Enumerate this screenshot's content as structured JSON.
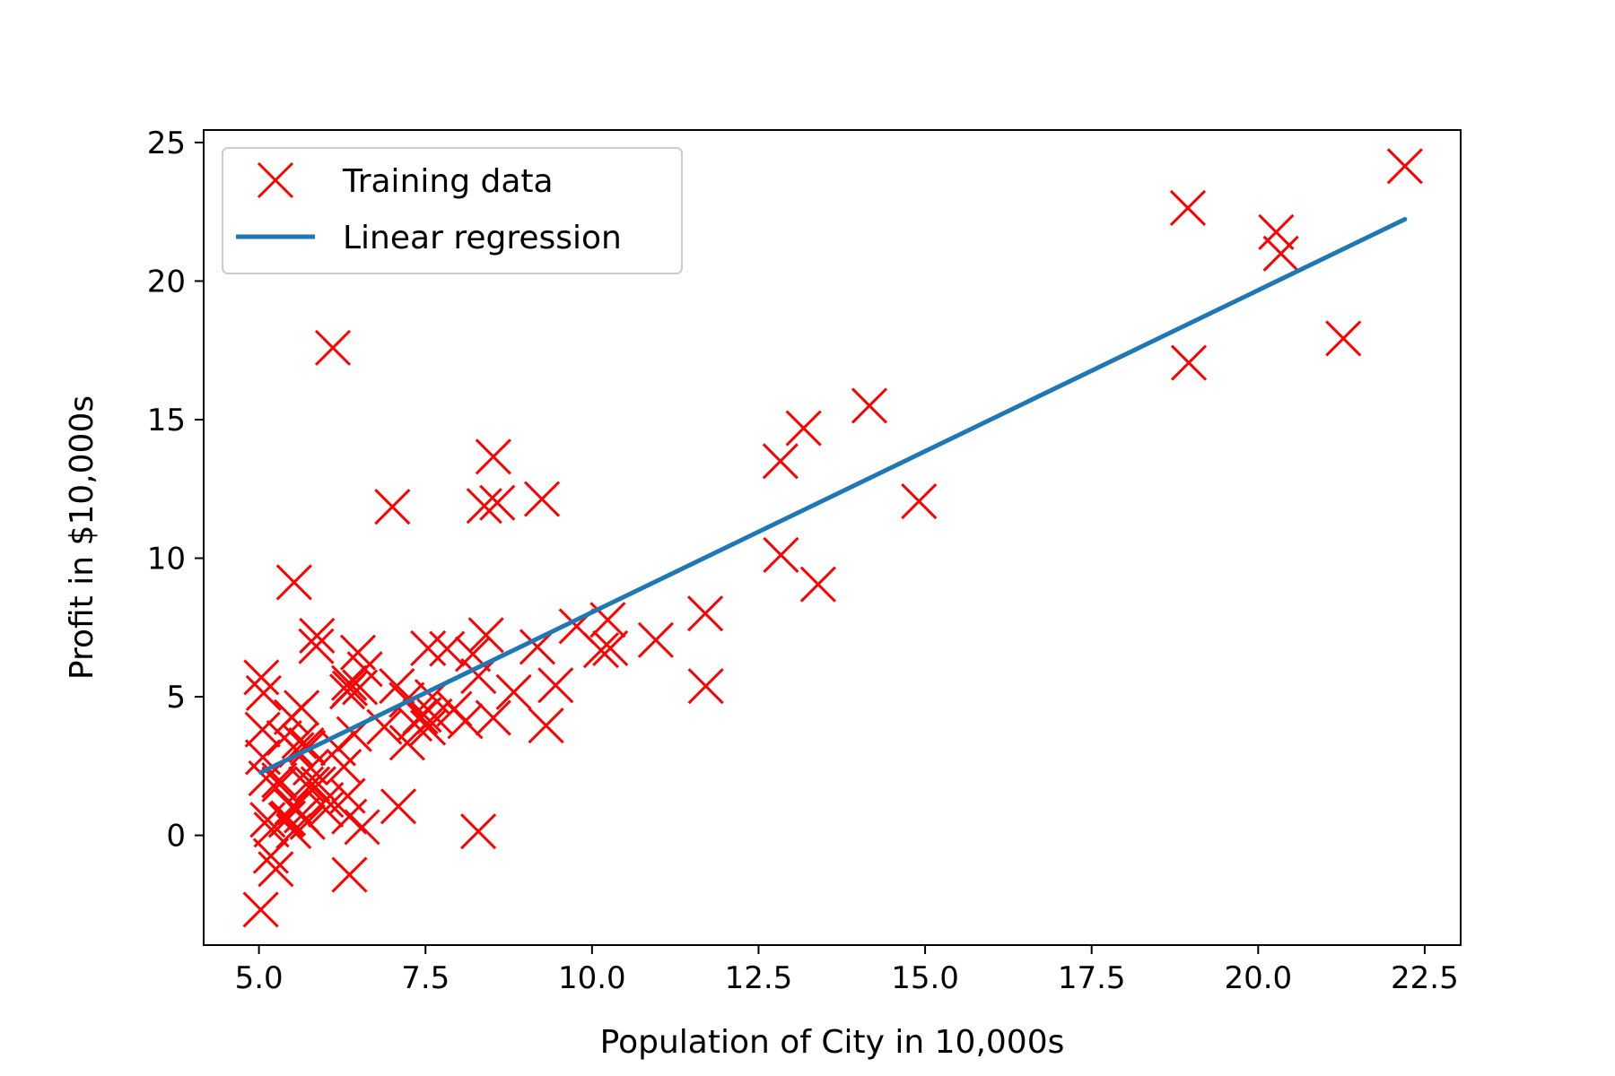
{
  "chart_data": {
    "type": "scatter",
    "xlabel": "Population of City in 10,000s",
    "ylabel": "Profit in $10,000s",
    "xlim": [
      4.17,
      23.04
    ],
    "ylim": [
      -3.96,
      25.45
    ],
    "xticks": [
      5.0,
      7.5,
      10.0,
      12.5,
      15.0,
      17.5,
      20.0,
      22.5
    ],
    "xtick_labels": [
      "5.0",
      "7.5",
      "10.0",
      "12.5",
      "15.0",
      "17.5",
      "20.0",
      "22.5"
    ],
    "yticks": [
      0,
      5,
      10,
      15,
      20,
      25
    ],
    "ytick_labels": [
      "0",
      "5",
      "10",
      "15",
      "20",
      "25"
    ],
    "grid": false,
    "legend_position": "top-left",
    "series": [
      {
        "name": "Training data",
        "kind": "scatter",
        "marker": "x",
        "color": "#ff0000",
        "points": [
          [
            6.1101,
            17.592
          ],
          [
            5.5277,
            9.1302
          ],
          [
            8.5186,
            13.662
          ],
          [
            7.0032,
            11.854
          ],
          [
            5.8598,
            6.8233
          ],
          [
            8.3829,
            11.886
          ],
          [
            7.4764,
            4.3483
          ],
          [
            8.5781,
            12.0
          ],
          [
            6.4862,
            6.5987
          ],
          [
            5.0546,
            3.8166
          ],
          [
            5.7107,
            3.2522
          ],
          [
            14.164,
            15.505
          ],
          [
            5.734,
            3.1551
          ],
          [
            8.4084,
            7.2258
          ],
          [
            5.6407,
            0.71618
          ],
          [
            5.3794,
            3.5129
          ],
          [
            6.3654,
            5.3048
          ],
          [
            5.1301,
            0.56077
          ],
          [
            6.4296,
            3.6518
          ],
          [
            7.0708,
            5.3893
          ],
          [
            6.1891,
            3.1386
          ],
          [
            20.27,
            21.767
          ],
          [
            5.4901,
            4.263
          ],
          [
            6.3261,
            5.1875
          ],
          [
            5.5649,
            3.0825
          ],
          [
            18.945,
            22.638
          ],
          [
            12.828,
            13.501
          ],
          [
            10.957,
            7.0467
          ],
          [
            13.176,
            14.692
          ],
          [
            22.203,
            24.147
          ],
          [
            5.2524,
            -1.22
          ],
          [
            6.5894,
            5.9966
          ],
          [
            9.2482,
            12.134
          ],
          [
            5.8918,
            1.8495
          ],
          [
            8.2111,
            6.5426
          ],
          [
            7.9334,
            4.5623
          ],
          [
            8.0959,
            4.1164
          ],
          [
            5.6063,
            3.3928
          ],
          [
            12.836,
            10.117
          ],
          [
            6.3534,
            5.4974
          ],
          [
            5.4069,
            0.55657
          ],
          [
            6.8825,
            3.9115
          ],
          [
            11.708,
            5.3854
          ],
          [
            5.7737,
            2.4406
          ],
          [
            7.8247,
            6.7318
          ],
          [
            7.0931,
            1.0463
          ],
          [
            5.0702,
            5.1337
          ],
          [
            5.8014,
            1.844
          ],
          [
            11.7,
            8.0043
          ],
          [
            5.5416,
            1.0179
          ],
          [
            7.5402,
            6.7504
          ],
          [
            5.3077,
            1.8396
          ],
          [
            7.4239,
            4.2885
          ],
          [
            7.6031,
            4.9981
          ],
          [
            6.3328,
            1.4233
          ],
          [
            6.3589,
            -1.4211
          ],
          [
            6.2742,
            2.4756
          ],
          [
            5.6397,
            4.6042
          ],
          [
            9.3102,
            3.9624
          ],
          [
            9.4536,
            5.4141
          ],
          [
            8.8254,
            5.1694
          ],
          [
            5.1793,
            -0.74279
          ],
          [
            21.279,
            17.929
          ],
          [
            14.908,
            12.054
          ],
          [
            18.959,
            17.054
          ],
          [
            7.2182,
            4.8852
          ],
          [
            8.2951,
            5.7442
          ],
          [
            10.236,
            7.7754
          ],
          [
            5.4994,
            1.0173
          ],
          [
            20.341,
            20.992
          ],
          [
            10.136,
            6.6799
          ],
          [
            7.3345,
            4.0259
          ],
          [
            6.0062,
            1.2784
          ],
          [
            7.2259,
            3.3411
          ],
          [
            5.0269,
            -2.6807
          ],
          [
            6.5479,
            0.29678
          ],
          [
            7.5386,
            3.8845
          ],
          [
            5.0365,
            5.7014
          ],
          [
            10.274,
            6.7526
          ],
          [
            5.1077,
            2.0576
          ],
          [
            5.7292,
            0.47953
          ],
          [
            5.1884,
            0.20421
          ],
          [
            6.3557,
            0.67861
          ],
          [
            9.7687,
            7.5435
          ],
          [
            6.5159,
            5.3436
          ],
          [
            8.5172,
            4.2415
          ],
          [
            9.1802,
            6.7981
          ],
          [
            6.002,
            0.92695
          ],
          [
            5.5204,
            0.152
          ],
          [
            5.0594,
            2.8214
          ],
          [
            5.7077,
            1.8451
          ],
          [
            7.6366,
            4.2959
          ],
          [
            5.8707,
            7.2029
          ],
          [
            5.3054,
            1.9869
          ],
          [
            8.2934,
            0.14454
          ],
          [
            13.394,
            9.0551
          ],
          [
            5.4369,
            0.61705
          ]
        ]
      },
      {
        "name": "Linear regression",
        "kind": "line",
        "color": "#1f77b4",
        "points": [
          [
            5.0269,
            2.2685
          ],
          [
            22.203,
            22.2307
          ]
        ]
      }
    ]
  }
}
